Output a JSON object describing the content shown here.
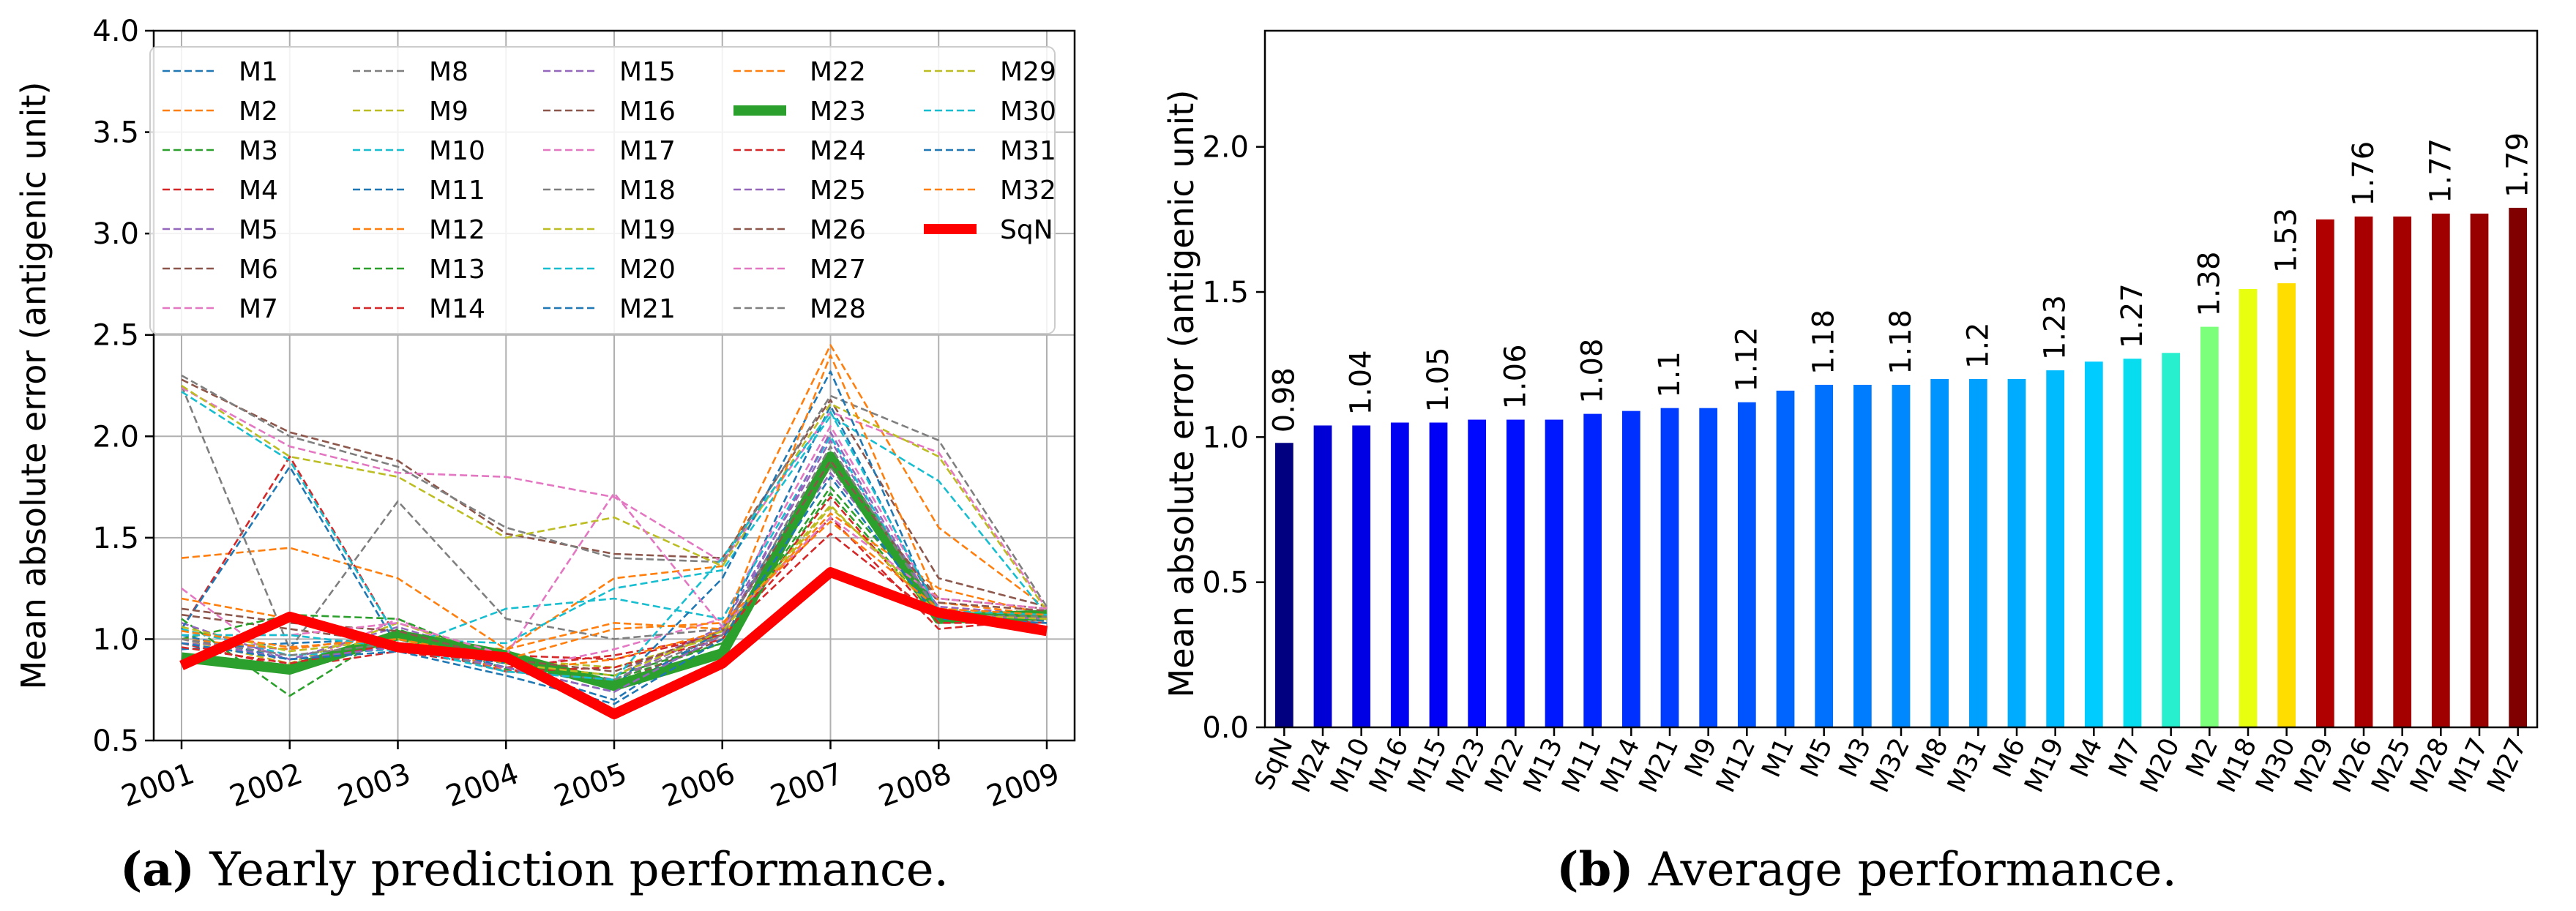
{
  "chart_data": [
    {
      "type": "line",
      "title": "",
      "caption": {
        "letter": "(a)",
        "text": " Yearly prediction performance."
      },
      "xlabel": "",
      "ylabel": "Mean absolute error (antigenic unit)",
      "x": [
        "2001",
        "2002",
        "2003",
        "2004",
        "2005",
        "2006",
        "2007",
        "2008",
        "2009"
      ],
      "ylim": [
        0.5,
        4.0
      ],
      "yticks": [
        "0.5",
        "1.0",
        "1.5",
        "2.0",
        "2.5",
        "3.0",
        "3.5",
        "4.0"
      ],
      "grid": true,
      "legend_position": "top",
      "series": [
        {
          "name": "M1",
          "color": "#1f77b4",
          "style": "dashed",
          "values": [
            1.02,
            0.9,
            0.97,
            0.86,
            0.7,
            1.05,
            2.15,
            1.12,
            1.1
          ]
        },
        {
          "name": "M2",
          "color": "#ff7f0e",
          "style": "dashed",
          "values": [
            1.4,
            1.45,
            1.3,
            0.95,
            1.3,
            1.36,
            2.45,
            1.55,
            1.15
          ]
        },
        {
          "name": "M3",
          "color": "#2ca02c",
          "style": "dashed",
          "values": [
            1.1,
            0.72,
            1.05,
            0.85,
            0.8,
            0.98,
            1.72,
            1.1,
            1.08
          ]
        },
        {
          "name": "M4",
          "color": "#d62728",
          "style": "dashed",
          "values": [
            1.05,
            1.9,
            1.0,
            0.92,
            0.9,
            1.02,
            1.6,
            1.05,
            1.1
          ]
        },
        {
          "name": "M5",
          "color": "#9467bd",
          "style": "dashed",
          "values": [
            0.98,
            0.95,
            1.02,
            0.88,
            0.82,
            1.06,
            1.98,
            1.12,
            1.12
          ]
        },
        {
          "name": "M6",
          "color": "#8c564b",
          "style": "dashed",
          "values": [
            1.12,
            1.05,
            0.98,
            0.92,
            0.78,
            1.0,
            1.85,
            1.2,
            1.15
          ]
        },
        {
          "name": "M7",
          "color": "#e377c2",
          "style": "dashed",
          "values": [
            1.25,
            0.85,
            1.1,
            0.84,
            0.95,
            1.1,
            2.05,
            1.15,
            1.12
          ]
        },
        {
          "name": "M8",
          "color": "#7f7f7f",
          "style": "dashed",
          "values": [
            2.25,
            0.95,
            1.68,
            1.1,
            1.0,
            1.05,
            1.85,
            1.1,
            1.14
          ]
        },
        {
          "name": "M9",
          "color": "#bcbd22",
          "style": "dashed",
          "values": [
            1.0,
            0.88,
            1.08,
            0.9,
            0.86,
            1.02,
            1.65,
            1.15,
            1.12
          ]
        },
        {
          "name": "M10",
          "color": "#17becf",
          "style": "dashed",
          "values": [
            1.05,
            0.92,
            0.95,
            1.15,
            1.2,
            1.1,
            2.0,
            1.1,
            1.1
          ]
        },
        {
          "name": "M11",
          "color": "#1f77b4",
          "style": "dashed",
          "values": [
            0.95,
            0.98,
            1.0,
            0.86,
            0.74,
            1.04,
            1.92,
            1.12,
            1.09
          ]
        },
        {
          "name": "M12",
          "color": "#ff7f0e",
          "style": "dashed",
          "values": [
            1.2,
            1.1,
            0.98,
            0.95,
            1.08,
            1.05,
            1.62,
            1.25,
            1.12
          ]
        },
        {
          "name": "M13",
          "color": "#2ca02c",
          "style": "dashed",
          "values": [
            1.0,
            1.12,
            1.1,
            0.88,
            0.82,
            0.98,
            1.75,
            1.14,
            1.1
          ]
        },
        {
          "name": "M14",
          "color": "#d62728",
          "style": "dashed",
          "values": [
            0.98,
            0.86,
            0.94,
            0.86,
            0.92,
            1.02,
            1.52,
            1.1,
            1.08
          ]
        },
        {
          "name": "M15",
          "color": "#9467bd",
          "style": "dashed",
          "values": [
            1.08,
            0.9,
            1.06,
            0.9,
            0.8,
            1.05,
            1.82,
            1.16,
            1.12
          ]
        },
        {
          "name": "M16",
          "color": "#8c564b",
          "style": "dashed",
          "values": [
            2.28,
            2.02,
            1.88,
            1.52,
            1.42,
            1.4,
            2.18,
            1.3,
            1.16
          ]
        },
        {
          "name": "M17",
          "color": "#e377c2",
          "style": "dashed",
          "values": [
            2.24,
            1.95,
            1.82,
            1.8,
            1.7,
            1.38,
            2.12,
            1.92,
            1.15
          ]
        },
        {
          "name": "M18",
          "color": "#7f7f7f",
          "style": "dashed",
          "values": [
            2.3,
            2.0,
            1.85,
            1.55,
            1.4,
            1.38,
            2.2,
            1.98,
            1.16
          ]
        },
        {
          "name": "M19",
          "color": "#bcbd22",
          "style": "dashed",
          "values": [
            2.25,
            1.9,
            1.8,
            1.5,
            1.6,
            1.36,
            2.16,
            1.9,
            1.14
          ]
        },
        {
          "name": "M20",
          "color": "#17becf",
          "style": "dashed",
          "values": [
            2.22,
            1.88,
            1.0,
            0.98,
            1.25,
            1.34,
            2.1,
            1.78,
            1.12
          ]
        },
        {
          "name": "M21",
          "color": "#1f77b4",
          "style": "dashed",
          "values": [
            1.05,
            1.85,
            0.96,
            0.88,
            0.76,
            1.3,
            2.32,
            1.1,
            1.1
          ]
        },
        {
          "name": "M22",
          "color": "#ff7f0e",
          "style": "dashed",
          "values": [
            1.0,
            0.95,
            1.02,
            0.84,
            0.9,
            1.04,
            2.4,
            1.18,
            1.12
          ]
        },
        {
          "name": "M23",
          "color": "#2ca02c",
          "style": "solid",
          "thick": true,
          "values": [
            0.91,
            0.85,
            1.02,
            0.92,
            0.77,
            0.93,
            1.9,
            1.1,
            1.12
          ]
        },
        {
          "name": "M24",
          "color": "#d62728",
          "style": "dashed",
          "values": [
            0.96,
            0.88,
            0.98,
            0.84,
            0.86,
            1.0,
            1.7,
            1.08,
            1.08
          ]
        },
        {
          "name": "M25",
          "color": "#9467bd",
          "style": "dashed",
          "values": [
            1.0,
            0.9,
            0.96,
            0.86,
            0.74,
            1.02,
            2.02,
            1.12,
            1.1
          ]
        },
        {
          "name": "M26",
          "color": "#8c564b",
          "style": "dashed",
          "values": [
            1.15,
            1.08,
            1.04,
            0.9,
            0.84,
            1.04,
            1.88,
            1.18,
            1.14
          ]
        },
        {
          "name": "M27",
          "color": "#e377c2",
          "style": "dashed",
          "values": [
            1.02,
            1.02,
            1.08,
            0.92,
            1.72,
            1.06,
            1.6,
            1.2,
            1.15
          ]
        },
        {
          "name": "M28",
          "color": "#7f7f7f",
          "style": "dashed",
          "values": [
            1.0,
            0.92,
            0.98,
            0.84,
            0.8,
            1.02,
            1.95,
            1.12,
            1.11
          ]
        },
        {
          "name": "M29",
          "color": "#bcbd22",
          "style": "dashed",
          "values": [
            1.06,
            0.94,
            1.0,
            0.88,
            0.82,
            1.04,
            1.66,
            1.12,
            1.1
          ]
        },
        {
          "name": "M30",
          "color": "#17becf",
          "style": "dashed",
          "values": [
            1.02,
            1.02,
            0.96,
            0.84,
            0.8,
            1.4,
            2.12,
            1.14,
            1.12
          ]
        },
        {
          "name": "M31",
          "color": "#1f77b4",
          "style": "dashed",
          "values": [
            0.98,
            0.9,
            0.94,
            0.82,
            0.68,
            1.0,
            1.8,
            1.1,
            1.08
          ]
        },
        {
          "name": "M32",
          "color": "#ff7f0e",
          "style": "dashed",
          "values": [
            1.04,
            0.96,
            1.0,
            0.9,
            1.05,
            1.08,
            1.58,
            1.15,
            1.12
          ]
        },
        {
          "name": "SqN",
          "color": "#ff0000",
          "style": "solid",
          "thick": true,
          "values": [
            0.87,
            1.11,
            0.96,
            0.91,
            0.63,
            0.88,
            1.33,
            1.13,
            1.04
          ]
        }
      ]
    },
    {
      "type": "bar",
      "title": "",
      "caption": {
        "letter": "(b)",
        "text": " Average performance."
      },
      "xlabel": "",
      "ylabel": "Mean absolute error (antigenic unit)",
      "ylim": [
        0.0,
        2.4
      ],
      "yticks": [
        "0.0",
        "0.5",
        "1.0",
        "1.5",
        "2.0"
      ],
      "grid": false,
      "categories": [
        "SqN",
        "M24",
        "M10",
        "M16",
        "M15",
        "M23",
        "M22",
        "M13",
        "M11",
        "M14",
        "M21",
        "M9",
        "M12",
        "M1",
        "M5",
        "M3",
        "M32",
        "M8",
        "M31",
        "M6",
        "M19",
        "M4",
        "M7",
        "M20",
        "M2",
        "M18",
        "M30",
        "M29",
        "M26",
        "M25",
        "M28",
        "M17",
        "M27"
      ],
      "values": [
        0.98,
        1.04,
        1.04,
        1.05,
        1.05,
        1.06,
        1.06,
        1.06,
        1.08,
        1.09,
        1.1,
        1.1,
        1.12,
        1.16,
        1.18,
        1.18,
        1.18,
        1.2,
        1.2,
        1.2,
        1.23,
        1.26,
        1.27,
        1.29,
        1.38,
        1.51,
        1.53,
        1.75,
        1.76,
        1.76,
        1.77,
        1.77,
        1.79
      ],
      "colors": [
        "#000080",
        "#0000d6",
        "#0000e4",
        "#0000f2",
        "#0000f7",
        "#0008ff",
        "#0010ff",
        "#0018ff",
        "#0024ff",
        "#0030ff",
        "#003cff",
        "#0048ff",
        "#0054ff",
        "#0064ff",
        "#0070ff",
        "#007cff",
        "#0088ff",
        "#0094ff",
        "#00a0ff",
        "#00acff",
        "#00bcff",
        "#00ccff",
        "#08dcef",
        "#28f0cf",
        "#7cff7a",
        "#e8ff10",
        "#ffdd00",
        "#b00000",
        "#a80000",
        "#a40000",
        "#a00000",
        "#980000",
        "#800000"
      ],
      "data_labels": [
        {
          "index": 0,
          "text": "0.98"
        },
        {
          "index": 2,
          "text": "1.04"
        },
        {
          "index": 4,
          "text": "1.05"
        },
        {
          "index": 6,
          "text": "1.06"
        },
        {
          "index": 8,
          "text": "1.08"
        },
        {
          "index": 10,
          "text": "1.1"
        },
        {
          "index": 12,
          "text": "1.12"
        },
        {
          "index": 14,
          "text": "1.18"
        },
        {
          "index": 16,
          "text": "1.18"
        },
        {
          "index": 18,
          "text": "1.2"
        },
        {
          "index": 20,
          "text": "1.23"
        },
        {
          "index": 22,
          "text": "1.27"
        },
        {
          "index": 24,
          "text": "1.38"
        },
        {
          "index": 26,
          "text": "1.53"
        },
        {
          "index": 28,
          "text": "1.76"
        },
        {
          "index": 30,
          "text": "1.77"
        },
        {
          "index": 32,
          "text": "1.79"
        }
      ]
    }
  ]
}
